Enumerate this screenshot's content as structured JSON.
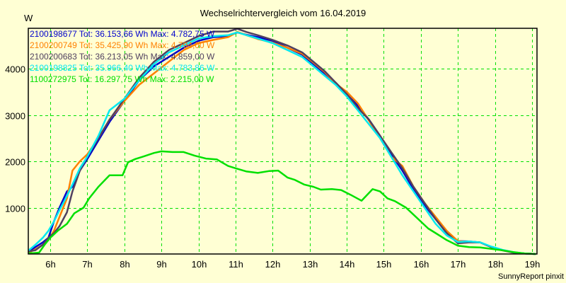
{
  "chart_data": {
    "type": "line",
    "title": "Wechselrichtervergleich vom 16.04.2019",
    "ylabel": "W",
    "xlabel": "",
    "footer": "SunnyReport pinxit",
    "xlim": [
      5.4,
      19.15
    ],
    "ylim": [
      0,
      4850
    ],
    "grid": true,
    "legend_position": "top-left",
    "x_ticks": [
      6,
      7,
      8,
      9,
      10,
      11,
      12,
      13,
      14,
      15,
      16,
      17,
      18,
      19
    ],
    "x_tick_labels": [
      "6h",
      "7h",
      "8h",
      "9h",
      "10h",
      "11h",
      "12h",
      "13h",
      "14h",
      "15h",
      "16h",
      "17h",
      "18h",
      "19h"
    ],
    "y_ticks": [
      1000,
      2000,
      3000,
      4000
    ],
    "y_tick_labels": [
      "1000",
      "2000",
      "3000",
      "4000"
    ],
    "series": [
      {
        "name": "2100198677",
        "legend": "2100198677 Tot: 36.153,66 Wh Max: 4.782,75 W",
        "color": "#0000cc",
        "x": [
          5.42,
          5.6,
          5.8,
          5.95,
          6.1,
          6.25,
          6.45,
          6.6,
          6.8,
          7.0,
          7.3,
          7.6,
          8.0,
          8.4,
          8.8,
          9.2,
          9.6,
          10.0,
          10.4,
          10.8,
          11.05,
          11.3,
          11.6,
          12.0,
          12.4,
          12.8,
          13.1,
          13.4,
          13.7,
          14.0,
          14.3,
          14.6,
          14.9,
          15.2,
          15.5,
          15.8,
          16.1,
          16.4,
          16.7,
          17.0,
          17.3,
          17.6,
          17.9,
          18.2,
          18.5,
          18.8,
          19.1
        ],
        "y": [
          50,
          150,
          250,
          350,
          700,
          1000,
          1350,
          1450,
          1800,
          2050,
          2450,
          2850,
          3300,
          3750,
          4050,
          4250,
          4450,
          4600,
          4680,
          4700,
          4782,
          4730,
          4680,
          4600,
          4450,
          4300,
          4100,
          3900,
          3700,
          3450,
          3200,
          2900,
          2550,
          2150,
          1800,
          1400,
          1050,
          750,
          450,
          280,
          270,
          250,
          150,
          80,
          30,
          10,
          0
        ]
      },
      {
        "name": "2100200749",
        "legend": "2100200749 Tot: 35.425,90 Wh Max: 4.794,00 W",
        "color": "#ff8000",
        "x": [
          5.42,
          5.6,
          5.8,
          5.95,
          6.1,
          6.25,
          6.45,
          6.6,
          6.8,
          7.0,
          7.3,
          7.6,
          8.0,
          8.4,
          8.8,
          9.2,
          9.6,
          10.0,
          10.4,
          10.8,
          11.05,
          11.3,
          11.6,
          12.0,
          12.4,
          12.8,
          13.1,
          13.4,
          13.7,
          14.0,
          14.3,
          14.6,
          14.9,
          15.2,
          15.5,
          15.8,
          16.1,
          16.4,
          16.7,
          17.0,
          17.3,
          17.6,
          17.9,
          18.2,
          18.5,
          18.8,
          19.1
        ],
        "y": [
          30,
          100,
          200,
          300,
          500,
          800,
          1200,
          1800,
          2000,
          2150,
          2500,
          2900,
          3300,
          3650,
          3900,
          4150,
          4400,
          4550,
          4620,
          4680,
          4794,
          4720,
          4640,
          4560,
          4450,
          4320,
          4130,
          3930,
          3680,
          3500,
          3250,
          2880,
          2500,
          2100,
          1900,
          1450,
          1100,
          800,
          500,
          280,
          260,
          250,
          150,
          80,
          30,
          10,
          0
        ]
      },
      {
        "name": "2100200683",
        "legend": "2100200683 Tot: 36.213,05 Wh Max: 4.859,00 W",
        "color": "#504060",
        "x": [
          5.42,
          5.6,
          5.8,
          5.95,
          6.1,
          6.25,
          6.45,
          6.6,
          6.8,
          7.0,
          7.3,
          7.6,
          8.0,
          8.4,
          8.8,
          9.2,
          9.6,
          10.0,
          10.4,
          10.8,
          11.05,
          11.3,
          11.6,
          12.0,
          12.4,
          12.8,
          13.1,
          13.4,
          13.7,
          14.0,
          14.3,
          14.6,
          14.9,
          15.2,
          15.5,
          15.8,
          16.1,
          16.4,
          16.7,
          17.0,
          17.3,
          17.6,
          17.9,
          18.2,
          18.5,
          18.8,
          19.1
        ],
        "y": [
          60,
          80,
          200,
          350,
          450,
          600,
          900,
          1350,
          1800,
          2100,
          2500,
          2900,
          3350,
          3800,
          4150,
          4400,
          4550,
          4700,
          4800,
          4800,
          4859,
          4790,
          4720,
          4620,
          4500,
          4350,
          4150,
          3950,
          3700,
          3450,
          3150,
          2900,
          2550,
          2200,
          1850,
          1450,
          1100,
          750,
          450,
          230,
          250,
          250,
          150,
          80,
          30,
          10,
          0
        ]
      },
      {
        "name": "2100198825",
        "legend": "2100198825 Tot: 35.966,40 Wh Max: 4.783,86 W",
        "color": "#00e8f0",
        "x": [
          5.42,
          5.6,
          5.8,
          5.95,
          6.1,
          6.25,
          6.45,
          6.6,
          6.8,
          7.0,
          7.3,
          7.6,
          8.0,
          8.4,
          8.8,
          9.2,
          9.6,
          10.0,
          10.4,
          10.8,
          11.05,
          11.3,
          11.6,
          12.0,
          12.4,
          12.8,
          13.1,
          13.4,
          13.7,
          14.0,
          14.3,
          14.6,
          14.9,
          15.2,
          15.5,
          15.8,
          16.1,
          16.4,
          16.7,
          17.0,
          17.3,
          17.6,
          17.9,
          18.2,
          18.5,
          18.8,
          19.1
        ],
        "y": [
          80,
          200,
          350,
          500,
          700,
          950,
          1250,
          1500,
          1850,
          2100,
          2550,
          3100,
          3350,
          3750,
          4100,
          4350,
          4500,
          4650,
          4700,
          4720,
          4783,
          4720,
          4650,
          4550,
          4400,
          4250,
          4050,
          3850,
          3650,
          3400,
          3100,
          2800,
          2500,
          2100,
          1700,
          1350,
          1000,
          650,
          400,
          260,
          270,
          250,
          160,
          90,
          40,
          10,
          0
        ]
      },
      {
        "name": "1100272975",
        "legend": "1100272975 Tot: 16.297,75 Wh Max: 2.215,00 W",
        "color": "#00e000",
        "x": [
          5.42,
          5.55,
          5.7,
          5.85,
          6.0,
          6.2,
          6.45,
          6.65,
          6.9,
          7.05,
          7.3,
          7.6,
          7.7,
          7.95,
          8.1,
          8.3,
          8.5,
          8.8,
          9.0,
          9.3,
          9.6,
          9.9,
          10.2,
          10.5,
          10.8,
          11.0,
          11.3,
          11.6,
          11.9,
          12.15,
          12.4,
          12.6,
          12.85,
          13.1,
          13.3,
          13.6,
          13.85,
          14.1,
          14.4,
          14.7,
          14.9,
          15.1,
          15.3,
          15.6,
          15.8,
          16.0,
          16.2,
          16.4,
          16.7,
          17.0,
          17.3,
          17.6,
          17.9,
          18.2,
          18.5,
          18.8,
          19.1
        ],
        "y": [
          20,
          20,
          30,
          200,
          350,
          500,
          650,
          880,
          1000,
          1200,
          1450,
          1700,
          1700,
          1700,
          1980,
          2050,
          2100,
          2180,
          2215,
          2200,
          2200,
          2120,
          2060,
          2040,
          1900,
          1850,
          1780,
          1750,
          1790,
          1800,
          1650,
          1600,
          1500,
          1450,
          1390,
          1400,
          1380,
          1280,
          1150,
          1400,
          1350,
          1200,
          1140,
          1000,
          850,
          700,
          550,
          450,
          300,
          180,
          150,
          140,
          110,
          80,
          40,
          10,
          0
        ]
      }
    ]
  }
}
